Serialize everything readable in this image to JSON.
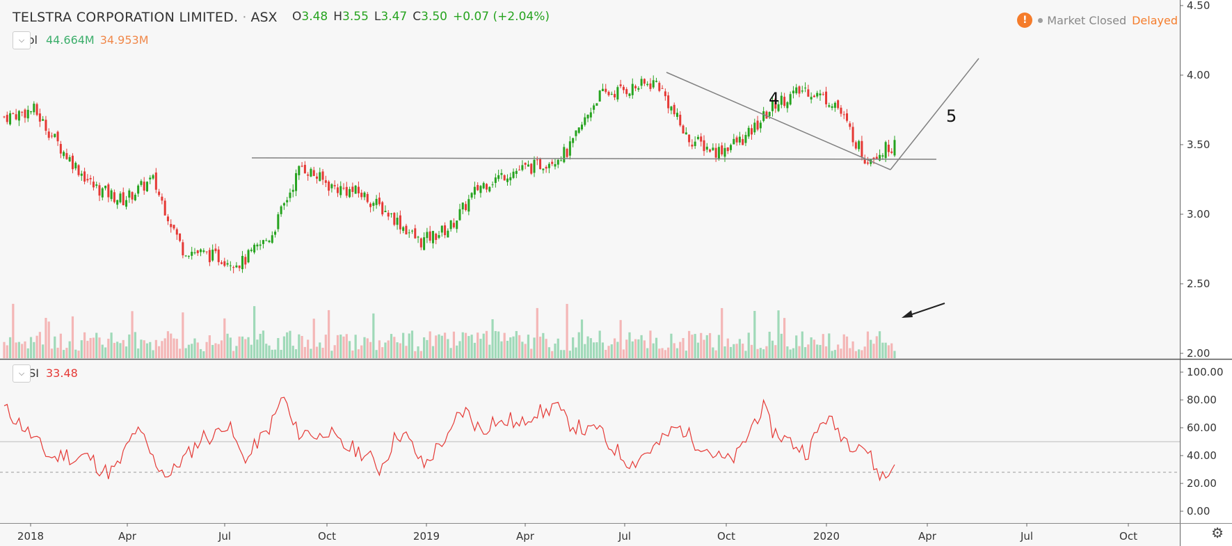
{
  "header": {
    "symbol_name": "TELSTRA CORPORATION LIMITED.",
    "exchange": "ASX",
    "open_label": "O",
    "open": "3.48",
    "high_label": "H",
    "high": "3.55",
    "low_label": "L",
    "low": "3.47",
    "close_label": "C",
    "close": "3.50",
    "change": "+0.07 (+2.04%)",
    "status_icon": "warning-icon",
    "status_warn_glyph": "!",
    "market_status": "Market Closed",
    "delay_status": "Delayed"
  },
  "volume_pane": {
    "label": "Vol",
    "value1": "44.664M",
    "value2": "34.953M"
  },
  "rsi_pane": {
    "label": "RSI",
    "value": "33.48"
  },
  "annotations": {
    "wave4": "4",
    "wave5": "5"
  },
  "colors": {
    "up": "#26a31f",
    "down": "#e53935",
    "vol_up": "#9fd9b8",
    "vol_down": "#f4b6b6",
    "rsi_line": "#e53935",
    "trendline": "#808080",
    "axis": "#333333",
    "grid": "#f0f0f0"
  },
  "chart_data": [
    {
      "type": "candlestick",
      "title": "TELSTRA CORPORATION LIMITED. · ASX",
      "y_axis": {
        "ticks": [
          "4.50",
          "4.00",
          "3.50",
          "3.00",
          "2.50",
          "2.00"
        ],
        "range": [
          2.0,
          4.5
        ]
      },
      "x_axis": {
        "ticks": [
          "2018",
          "Apr",
          "Jul",
          "Oct",
          "2019",
          "Apr",
          "Jul",
          "Oct",
          "2020",
          "Apr",
          "Jul",
          "Oct"
        ]
      },
      "close_path_approx": [
        {
          "x": "2017-11",
          "y": 3.7
        },
        {
          "x": "2018-01",
          "y": 3.75
        },
        {
          "x": "2018-02",
          "y": 3.45
        },
        {
          "x": "2018-03",
          "y": 3.2
        },
        {
          "x": "2018-04",
          "y": 3.1
        },
        {
          "x": "2018-05",
          "y": 3.25
        },
        {
          "x": "2018-05b",
          "y": 2.75
        },
        {
          "x": "2018-06",
          "y": 2.7
        },
        {
          "x": "2018-07",
          "y": 2.65
        },
        {
          "x": "2018-08",
          "y": 2.85
        },
        {
          "x": "2018-08b",
          "y": 3.35
        },
        {
          "x": "2018-09",
          "y": 3.2
        },
        {
          "x": "2018-10",
          "y": 3.15
        },
        {
          "x": "2018-11",
          "y": 3.0
        },
        {
          "x": "2018-12",
          "y": 2.8
        },
        {
          "x": "2019-01",
          "y": 2.9
        },
        {
          "x": "2019-02",
          "y": 3.2
        },
        {
          "x": "2019-03",
          "y": 3.3
        },
        {
          "x": "2019-04",
          "y": 3.35
        },
        {
          "x": "2019-05",
          "y": 3.45
        },
        {
          "x": "2019-06",
          "y": 3.85
        },
        {
          "x": "2019-07",
          "y": 3.9
        },
        {
          "x": "2019-08",
          "y": 3.95
        },
        {
          "x": "2019-09",
          "y": 3.55
        },
        {
          "x": "2019-10",
          "y": 3.45
        },
        {
          "x": "2019-11",
          "y": 3.55
        },
        {
          "x": "2019-12",
          "y": 3.8
        },
        {
          "x": "2020-01",
          "y": 3.9
        },
        {
          "x": "2020-02",
          "y": 3.8
        },
        {
          "x": "2020-03",
          "y": 3.4
        },
        {
          "x": "2020-03b",
          "y": 3.5
        }
      ],
      "horizontal_line": {
        "y": 3.4
      },
      "trendline": {
        "from_y": 4.02,
        "to_y": 3.32
      },
      "projection": {
        "from_y": 3.32,
        "to_y": 4.12
      }
    },
    {
      "type": "bar",
      "title": "Vol",
      "values_label": [
        "44.664M",
        "34.953M"
      ]
    },
    {
      "type": "line",
      "title": "RSI",
      "y_axis": {
        "ticks": [
          "100.00",
          "80.00",
          "60.00",
          "40.00",
          "20.00",
          "0.00"
        ],
        "range": [
          0,
          100
        ]
      },
      "reference_lines": [
        50,
        28
      ],
      "values_approx": [
        74,
        68,
        62,
        55,
        48,
        40,
        38,
        42,
        36,
        40,
        38,
        30,
        28,
        32,
        45,
        58,
        52,
        38,
        30,
        25,
        35,
        40,
        48,
        55,
        52,
        64,
        58,
        42,
        38,
        50,
        56,
        68,
        84,
        62,
        55,
        58,
        52,
        60,
        50,
        46,
        45,
        42,
        38,
        30,
        42,
        56,
        54,
        44,
        32,
        40,
        50,
        52,
        70,
        72,
        62,
        58,
        66,
        62,
        66,
        60,
        68,
        72,
        70,
        78,
        68,
        62,
        60,
        56,
        62,
        48,
        45,
        38,
        34,
        40,
        44,
        48,
        55,
        60,
        58,
        50,
        48,
        42,
        38,
        36,
        40,
        52,
        66,
        74,
        58,
        54,
        50,
        46,
        42,
        55,
        68,
        62,
        55,
        48,
        50,
        42,
        28,
        24,
        33
      ],
      "last": 33.48
    }
  ]
}
